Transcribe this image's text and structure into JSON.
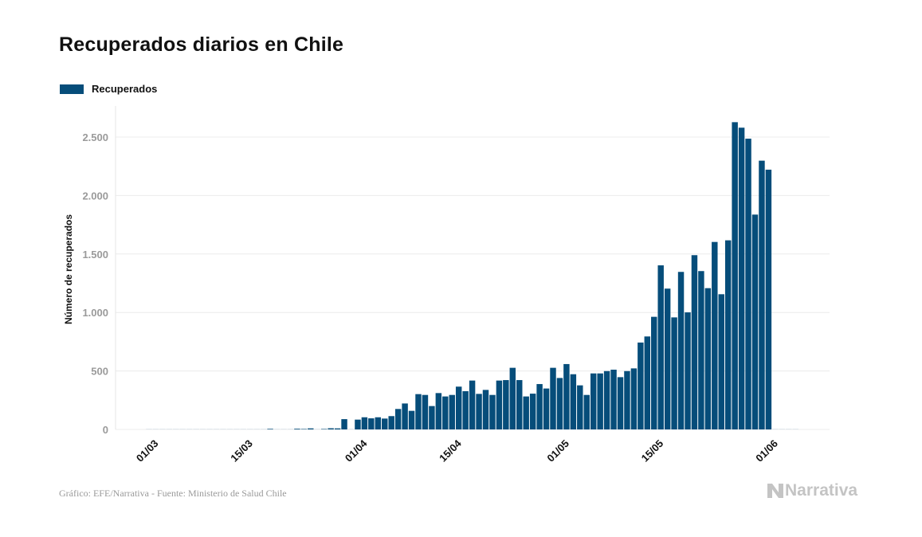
{
  "header": {
    "title": "Recuperados diarios en Chile"
  },
  "legend": {
    "items": [
      {
        "label": "Recuperados",
        "color": "#064D7A"
      }
    ]
  },
  "footer": {
    "source": "Gráfico: EFE/Narrativa - Fuente: Ministerio de Salud Chile",
    "brand": "Narrativa",
    "brand_icon": "narrativa-logo-icon"
  },
  "chart_data": {
    "type": "bar",
    "title": "Recuperados diarios en Chile",
    "xlabel": "",
    "ylabel": "Número de recuperados",
    "ylim": [
      0,
      2700
    ],
    "yticks": [
      0,
      500,
      1000,
      1500,
      2000,
      2500
    ],
    "ytick_labels": [
      "0",
      "500",
      "1.000",
      "1.500",
      "2.000",
      "2.500"
    ],
    "xtick_labels": [
      "01/03",
      "15/03",
      "01/04",
      "15/04",
      "01/05",
      "15/05",
      "01/06"
    ],
    "xtick_days": [
      0,
      14,
      31,
      45,
      61,
      75,
      92
    ],
    "grid": true,
    "legend": "top-left",
    "x_start": "01/03",
    "x_unit": "day",
    "total_days_axis": 97,
    "series": [
      {
        "name": "Recuperados",
        "color": "#064D7A",
        "values": [
          0,
          0,
          0,
          0,
          0,
          0,
          0,
          0,
          0,
          0,
          0,
          0,
          0,
          0,
          0,
          0,
          0,
          0,
          5,
          0,
          0,
          0,
          6,
          4,
          9,
          0,
          4,
          10,
          9,
          88,
          0,
          84,
          104,
          95,
          104,
          93,
          114,
          175,
          222,
          159,
          302,
          295,
          200,
          311,
          282,
          295,
          366,
          327,
          418,
          304,
          338,
          295,
          418,
          422,
          527,
          422,
          282,
          306,
          388,
          350,
          527,
          440,
          559,
          472,
          377,
          295,
          479,
          479,
          499,
          511,
          447,
          499,
          522,
          743,
          795,
          963,
          1403,
          1204,
          958,
          1347,
          1001,
          1490,
          1354,
          1208,
          1603,
          1156,
          1617,
          2627,
          2580,
          2486,
          1837,
          2298,
          2221,
          0,
          0,
          0,
          0
        ]
      }
    ]
  }
}
